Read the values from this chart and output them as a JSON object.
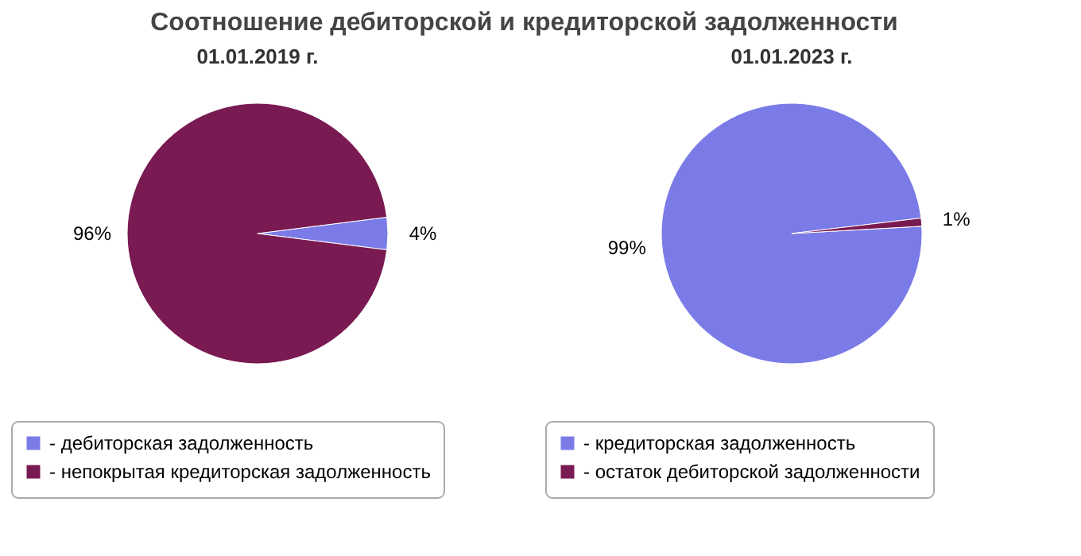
{
  "chart_data": [
    {
      "type": "pie",
      "title": "Соотношение дебиторской и кредиторской задолженности",
      "subtitle": "01.01.2019 г.",
      "categories": [
        "- дебиторская задолженность",
        "- непокрытая кредиторская задолженность"
      ],
      "values": [
        4,
        96
      ],
      "value_labels": [
        "4%",
        "96%"
      ],
      "colors": [
        "#7b7be8",
        "#7a1a52"
      ],
      "legend": "bottom"
    },
    {
      "type": "pie",
      "subtitle": "01.01.2023 г.",
      "categories": [
        "- кредиторская задолженность",
        "- остаток дебиторской задолженности"
      ],
      "values": [
        99,
        1
      ],
      "value_labels": [
        "99%",
        "1%"
      ],
      "colors": [
        "#7b7be8",
        "#7a1a52"
      ],
      "legend": "bottom"
    }
  ]
}
